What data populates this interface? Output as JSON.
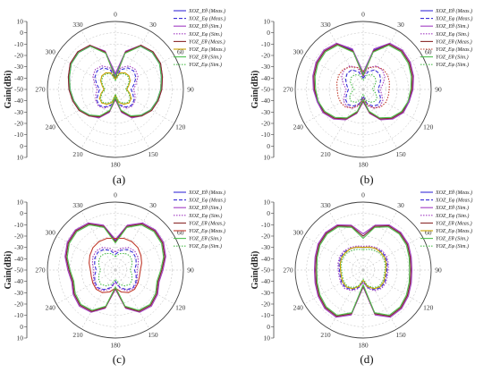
{
  "panels": [
    {
      "label": "(a)",
      "chart_data": {
        "type": "polar",
        "ylabel": "Gain(dBi)",
        "r_ticks": [
          10,
          0,
          -10,
          -20,
          -30,
          -40,
          -50
        ],
        "angle_labels": [
          "0",
          "30",
          "60",
          "90",
          "120",
          "150",
          "180",
          "210",
          "240",
          "270",
          "300",
          "330"
        ],
        "rlim": [
          -50,
          10
        ],
        "theta": [
          0,
          15,
          30,
          45,
          60,
          75,
          90,
          105,
          120,
          135,
          150,
          165,
          180
        ],
        "series": [
          {
            "name": "XOZ_Eθ (Meas.)",
            "color": "#3a2fd8",
            "dash": "solid",
            "values": [
              -38,
              -16,
              -6,
              -4,
              -5,
              -8,
              -10,
              -12,
              -14,
              -18,
              -22,
              -30,
              -42
            ]
          },
          {
            "name": "XOZ_Eφ (Meas.)",
            "color": "#3a2fd8",
            "dash": "dash",
            "values": [
              -40,
              -32,
              -28,
              -27,
              -29,
              -33,
              -36,
              -34,
              -31,
              -30,
              -32,
              -36,
              -44
            ]
          },
          {
            "name": "XOZ_Eθ (Sim.)",
            "color": "#a23dc2",
            "dash": "solid",
            "values": [
              -36,
              -15,
              -5,
              -3,
              -4,
              -7,
              -9,
              -11,
              -13,
              -17,
              -21,
              -29,
              -41
            ]
          },
          {
            "name": "XOZ_Eφ (Sim.)",
            "color": "#a23dc2",
            "dash": "dot",
            "values": [
              -38,
              -30,
              -26,
              -25,
              -27,
              -31,
              -34,
              -32,
              -30,
              -29,
              -31,
              -35,
              -43
            ]
          },
          {
            "name": "YOZ_Eθ (Meas.)",
            "color": "#8b2a2a",
            "dash": "solid",
            "values": [
              -40,
              -16,
              -5,
              -3,
              -4,
              -7,
              -9,
              -11,
              -13,
              -17,
              -22,
              -30,
              -42
            ]
          },
          {
            "name": "YOZ_Eφ (Meas.)",
            "color": "#c8a000",
            "dash": "solid",
            "values": [
              -41,
              -35,
              -33,
              -33,
              -35,
              -38,
              -40,
              -37,
              -34,
              -33,
              -35,
              -38,
              -45
            ]
          },
          {
            "name": "YOZ_Eθ (Sim.)",
            "color": "#4fc04f",
            "dash": "solid",
            "values": [
              -39,
              -17,
              -6,
              -4,
              -5,
              -8,
              -10,
              -12,
              -14,
              -18,
              -23,
              -31,
              -43
            ]
          },
          {
            "name": "YOZ_Eφ (Sim.)",
            "color": "#4fc04f",
            "dash": "dot",
            "values": [
              -42,
              -36,
              -34,
              -34,
              -36,
              -39,
              -41,
              -38,
              -35,
              -34,
              -36,
              -39,
              -46
            ]
          }
        ]
      }
    },
    {
      "label": "(b)",
      "chart_data": {
        "type": "polar",
        "ylabel": "Gain(dBi)",
        "r_ticks": [
          10,
          0,
          -10,
          -20,
          -30,
          -40,
          -50
        ],
        "angle_labels": [
          "0",
          "30",
          "60",
          "90",
          "120",
          "150",
          "180",
          "210",
          "240",
          "270",
          "300",
          "330"
        ],
        "rlim": [
          -50,
          10
        ],
        "theta": [
          0,
          15,
          30,
          45,
          60,
          75,
          90,
          105,
          120,
          135,
          150,
          165,
          180
        ],
        "series": [
          {
            "name": "XOZ_Eθ (Meas.)",
            "color": "#3a2fd8",
            "dash": "solid",
            "values": [
              -36,
              -14,
              -4,
              -2,
              -3,
              -5,
              -7,
              -8,
              -10,
              -14,
              -20,
              -29,
              -40
            ]
          },
          {
            "name": "XOZ_Eφ (Meas.)",
            "color": "#3a2fd8",
            "dash": "dash",
            "values": [
              -40,
              -34,
              -30,
              -30,
              -32,
              -35,
              -37,
              -35,
              -32,
              -31,
              -33,
              -37,
              -44
            ]
          },
          {
            "name": "XOZ_Eθ (Sim.)",
            "color": "#a23dc2",
            "dash": "solid",
            "values": [
              -35,
              -13,
              -3,
              -1,
              -2,
              -4,
              -6,
              -8,
              -9,
              -13,
              -19,
              -28,
              -39
            ]
          },
          {
            "name": "XOZ_Eφ (Sim.)",
            "color": "#a23dc2",
            "dash": "dot",
            "values": [
              -38,
              -30,
              -26,
              -26,
              -28,
              -32,
              -35,
              -33,
              -30,
              -29,
              -31,
              -35,
              -43
            ]
          },
          {
            "name": "YOZ_Eθ (Meas.)",
            "color": "#8b2a2a",
            "dash": "solid",
            "values": [
              -38,
              -15,
              -4,
              -2,
              -3,
              -5,
              -7,
              -9,
              -10,
              -14,
              -20,
              -29,
              -40
            ]
          },
          {
            "name": "YOZ_Eφ (Meas.)",
            "color": "#c0392b",
            "dash": "dot",
            "values": [
              -34,
              -30,
              -27,
              -25,
              -25,
              -26,
              -27,
              -27,
              -27,
              -28,
              -31,
              -36,
              -42
            ]
          },
          {
            "name": "YOZ_Eθ (Sim.)",
            "color": "#4fc04f",
            "dash": "solid",
            "values": [
              -37,
              -16,
              -5,
              -3,
              -4,
              -6,
              -8,
              -9,
              -11,
              -15,
              -21,
              -30,
              -41
            ]
          },
          {
            "name": "YOZ_Eφ (Sim.)",
            "color": "#4fc04f",
            "dash": "dot",
            "values": [
              -42,
              -37,
              -35,
              -35,
              -37,
              -40,
              -42,
              -39,
              -36,
              -35,
              -37,
              -40,
              -46
            ]
          }
        ]
      }
    },
    {
      "label": "(c)",
      "chart_data": {
        "type": "polar",
        "ylabel": "Gain(dBi)",
        "r_ticks": [
          10,
          0,
          -10,
          -20,
          -30,
          -40,
          -50
        ],
        "angle_labels": [
          "0",
          "30",
          "60",
          "90",
          "120",
          "150",
          "180",
          "210",
          "240",
          "270",
          "300",
          "330"
        ],
        "rlim": [
          -50,
          10
        ],
        "theta": [
          0,
          15,
          30,
          45,
          60,
          75,
          90,
          105,
          120,
          135,
          150,
          165,
          180
        ],
        "series": [
          {
            "name": "XOZ_Eθ (Meas.)",
            "color": "#3a2fd8",
            "dash": "solid",
            "values": [
              -24,
              -10,
              -3,
              -1,
              -2,
              -5,
              -9,
              -11,
              -8,
              -6,
              -8,
              -16,
              -34
            ]
          },
          {
            "name": "XOZ_Eφ (Meas.)",
            "color": "#3a2fd8",
            "dash": "dash",
            "values": [
              -36,
              -32,
              -29,
              -28,
              -29,
              -31,
              -33,
              -31,
              -29,
              -28,
              -30,
              -34,
              -40
            ]
          },
          {
            "name": "XOZ_Eθ (Sim.)",
            "color": "#a23dc2",
            "dash": "solid",
            "values": [
              -23,
              -9,
              -2,
              0,
              -1,
              -4,
              -8,
              -10,
              -7,
              -5,
              -7,
              -15,
              -33
            ]
          },
          {
            "name": "XOZ_Eφ (Sim.)",
            "color": "#a23dc2",
            "dash": "dot",
            "values": [
              -34,
              -30,
              -27,
              -26,
              -27,
              -29,
              -31,
              -30,
              -28,
              -27,
              -29,
              -33,
              -39
            ]
          },
          {
            "name": "YOZ_Eθ (Meas.)",
            "color": "#8b2a2a",
            "dash": "solid",
            "values": [
              -25,
              -10,
              -3,
              -1,
              -2,
              -5,
              -9,
              -11,
              -8,
              -6,
              -8,
              -16,
              -34
            ]
          },
          {
            "name": "YOZ_Eφ (Meas.)",
            "color": "#c0392b",
            "dash": "solid",
            "values": [
              -22,
              -21,
              -21,
              -22,
              -24,
              -26,
              -28,
              -28,
              -27,
              -26,
              -27,
              -30,
              -34
            ]
          },
          {
            "name": "YOZ_Eθ (Sim.)",
            "color": "#4fc04f",
            "dash": "solid",
            "values": [
              -26,
              -11,
              -4,
              -2,
              -3,
              -6,
              -10,
              -12,
              -9,
              -7,
              -9,
              -17,
              -35
            ]
          },
          {
            "name": "YOZ_Eφ (Sim.)",
            "color": "#4fc04f",
            "dash": "dot",
            "values": [
              -38,
              -35,
              -33,
              -32,
              -33,
              -35,
              -37,
              -35,
              -33,
              -32,
              -34,
              -37,
              -42
            ]
          }
        ]
      }
    },
    {
      "label": "(d)",
      "chart_data": {
        "type": "polar",
        "ylabel": "Gain(dBi)",
        "r_ticks": [
          10,
          0,
          -10,
          -20,
          -30,
          -40,
          -50
        ],
        "angle_labels": [
          "0",
          "30",
          "60",
          "90",
          "120",
          "150",
          "180",
          "210",
          "240",
          "270",
          "300",
          "330"
        ],
        "rlim": [
          -50,
          10
        ],
        "theta": [
          0,
          15,
          30,
          45,
          60,
          75,
          90,
          105,
          120,
          135,
          150,
          165,
          180
        ],
        "series": [
          {
            "name": "XOZ_Eθ (Meas.)",
            "color": "#3a2fd8",
            "dash": "solid",
            "values": [
              -20,
              -10,
              -5,
              -4,
              -5,
              -7,
              -8,
              -7,
              -5,
              -3,
              -3,
              -10,
              -36
            ]
          },
          {
            "name": "XOZ_Eφ (Meas.)",
            "color": "#3a2fd8",
            "dash": "dash",
            "values": [
              -30,
              -29,
              -28,
              -27,
              -27,
              -28,
              -29,
              -29,
              -28,
              -28,
              -30,
              -34,
              -40
            ]
          },
          {
            "name": "XOZ_Eθ (Sim.)",
            "color": "#a23dc2",
            "dash": "solid",
            "values": [
              -18,
              -9,
              -4,
              -3,
              -4,
              -6,
              -7,
              -6,
              -4,
              -2,
              -2,
              -9,
              -35
            ]
          },
          {
            "name": "XOZ_Eφ (Sim.)",
            "color": "#a23dc2",
            "dash": "dot",
            "values": [
              -29,
              -28,
              -27,
              -26,
              -26,
              -27,
              -28,
              -28,
              -27,
              -27,
              -29,
              -33,
              -39
            ]
          },
          {
            "name": "YOZ_Eθ (Meas.)",
            "color": "#8b2a2a",
            "dash": "solid",
            "values": [
              -20,
              -10,
              -5,
              -4,
              -5,
              -7,
              -8,
              -7,
              -5,
              -3,
              -3,
              -10,
              -36
            ]
          },
          {
            "name": "YOZ_Eφ (Meas.)",
            "color": "#c8a000",
            "dash": "solid",
            "values": [
              -30,
              -29,
              -28,
              -28,
              -28,
              -29,
              -30,
              -30,
              -29,
              -29,
              -31,
              -35,
              -41
            ]
          },
          {
            "name": "YOZ_Eθ (Sim.)",
            "color": "#4fc04f",
            "dash": "solid",
            "values": [
              -22,
              -11,
              -6,
              -5,
              -6,
              -8,
              -9,
              -8,
              -6,
              -4,
              -4,
              -11,
              -37
            ]
          },
          {
            "name": "YOZ_Eφ (Sim.)",
            "color": "#4fc04f",
            "dash": "dot",
            "values": [
              -32,
              -31,
              -30,
              -29,
              -29,
              -30,
              -31,
              -31,
              -30,
              -30,
              -32,
              -36,
              -42
            ]
          }
        ]
      }
    }
  ]
}
